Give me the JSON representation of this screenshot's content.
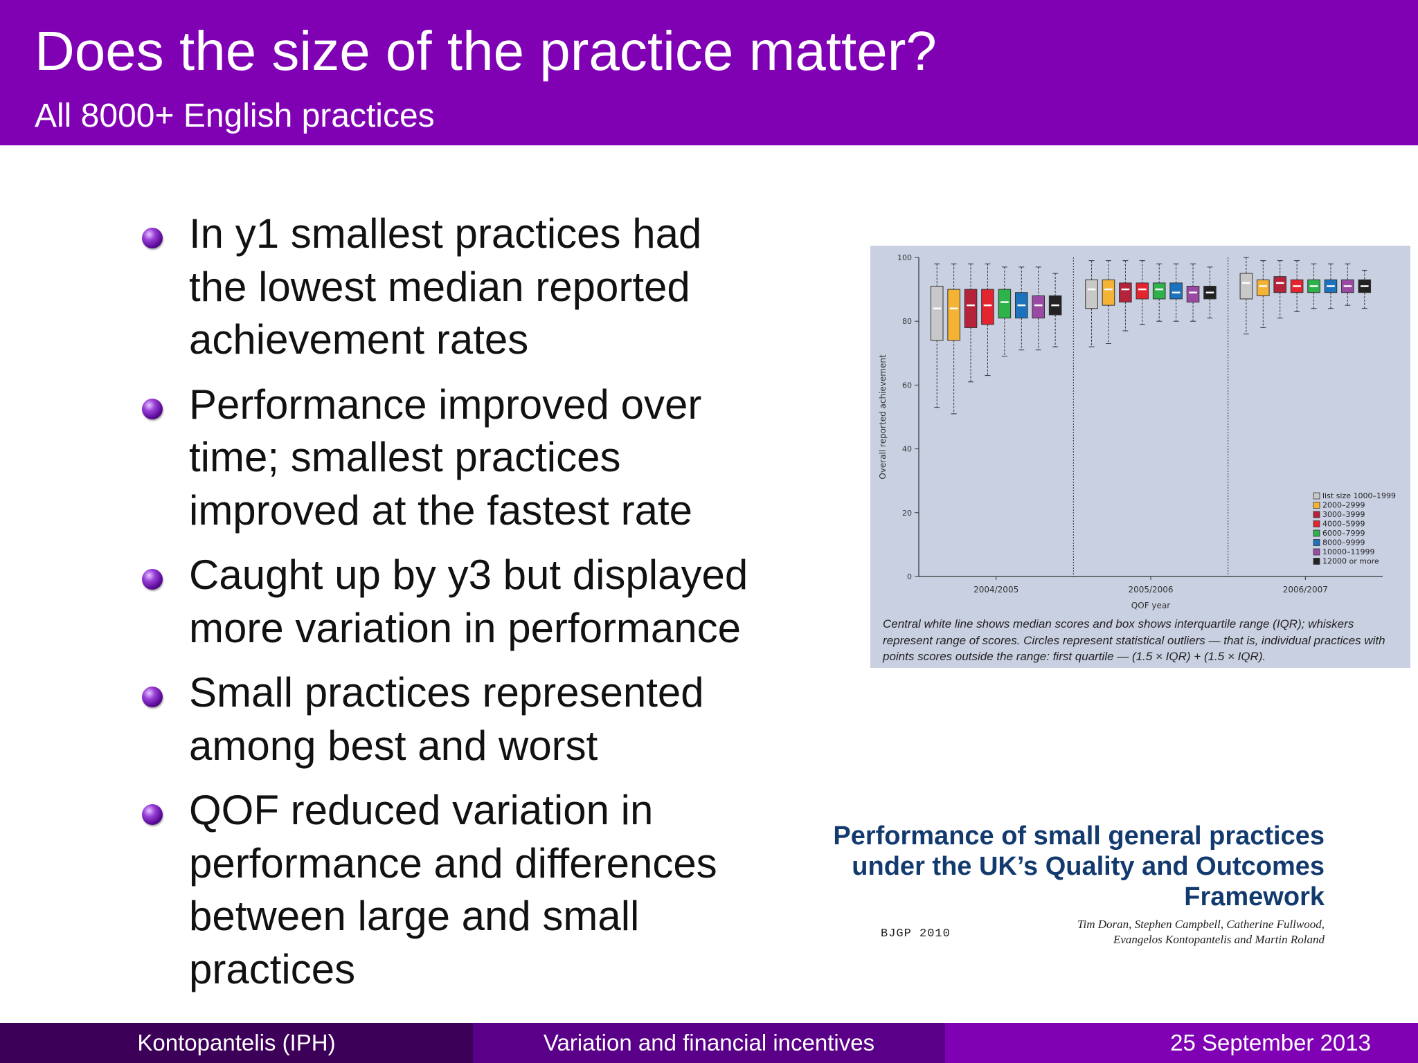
{
  "header": {
    "title": "Does the size of the practice matter?",
    "subtitle": "All 8000+ English practices"
  },
  "bullets": [
    "In y1 smallest practices had the lowest median reported achievement rates",
    "Performance improved over time; smallest practices improved at the fastest rate",
    "Caught up by y3 but displayed more variation in performance",
    "Small practices represented among best and worst",
    "QOF reduced variation in performance and differences between large and small practices"
  ],
  "chart_data": {
    "type": "box",
    "xlabel": "QOF year",
    "ylabel": "Overall reported achievement",
    "ylim": [
      0,
      100
    ],
    "yticks": [
      0,
      20,
      40,
      60,
      80,
      100
    ],
    "categories": [
      "2004/2005",
      "2005/2006",
      "2006/2007"
    ],
    "legend_position": "bottom-right",
    "series": [
      {
        "name": "list size 1000–1999",
        "color": "#c8c8c8",
        "values": [
          {
            "q1": 74,
            "median": 84,
            "q3": 91,
            "whisker_low": 53,
            "whisker_high": 98
          },
          {
            "q1": 84,
            "median": 90,
            "q3": 93,
            "whisker_low": 72,
            "whisker_high": 99
          },
          {
            "q1": 87,
            "median": 92,
            "q3": 95,
            "whisker_low": 76,
            "whisker_high": 100
          }
        ]
      },
      {
        "name": "2000–2999",
        "color": "#f5b335",
        "values": [
          {
            "q1": 74,
            "median": 84,
            "q3": 90,
            "whisker_low": 51,
            "whisker_high": 98
          },
          {
            "q1": 85,
            "median": 90,
            "q3": 93,
            "whisker_low": 73,
            "whisker_high": 99
          },
          {
            "q1": 88,
            "median": 91,
            "q3": 93,
            "whisker_low": 78,
            "whisker_high": 99
          }
        ]
      },
      {
        "name": "3000–3999",
        "color": "#b5233a",
        "values": [
          {
            "q1": 78,
            "median": 85,
            "q3": 90,
            "whisker_low": 61,
            "whisker_high": 98
          },
          {
            "q1": 86,
            "median": 90,
            "q3": 92,
            "whisker_low": 77,
            "whisker_high": 99
          },
          {
            "q1": 89,
            "median": 92,
            "q3": 94,
            "whisker_low": 81,
            "whisker_high": 99
          }
        ]
      },
      {
        "name": "4000–5999",
        "color": "#e4252f",
        "values": [
          {
            "q1": 79,
            "median": 85,
            "q3": 90,
            "whisker_low": 63,
            "whisker_high": 98
          },
          {
            "q1": 87,
            "median": 90,
            "q3": 92,
            "whisker_low": 79,
            "whisker_high": 99
          },
          {
            "q1": 89,
            "median": 91,
            "q3": 93,
            "whisker_low": 83,
            "whisker_high": 99
          }
        ]
      },
      {
        "name": "6000–7999",
        "color": "#2eb34a",
        "values": [
          {
            "q1": 81,
            "median": 86,
            "q3": 90,
            "whisker_low": 69,
            "whisker_high": 97
          },
          {
            "q1": 87,
            "median": 90,
            "q3": 92,
            "whisker_low": 80,
            "whisker_high": 98
          },
          {
            "q1": 89,
            "median": 91,
            "q3": 93,
            "whisker_low": 84,
            "whisker_high": 98
          }
        ]
      },
      {
        "name": "8000–9999",
        "color": "#1b73bd",
        "values": [
          {
            "q1": 81,
            "median": 85,
            "q3": 89,
            "whisker_low": 71,
            "whisker_high": 97
          },
          {
            "q1": 87,
            "median": 89,
            "q3": 92,
            "whisker_low": 80,
            "whisker_high": 98
          },
          {
            "q1": 89,
            "median": 91,
            "q3": 93,
            "whisker_low": 84,
            "whisker_high": 98
          }
        ]
      },
      {
        "name": "10000–11999",
        "color": "#9b4aa4",
        "values": [
          {
            "q1": 81,
            "median": 85,
            "q3": 88,
            "whisker_low": 71,
            "whisker_high": 97
          },
          {
            "q1": 86,
            "median": 89,
            "q3": 91,
            "whisker_low": 80,
            "whisker_high": 98
          },
          {
            "q1": 89,
            "median": 91,
            "q3": 93,
            "whisker_low": 85,
            "whisker_high": 98
          }
        ]
      },
      {
        "name": "12000 or more",
        "color": "#222222",
        "values": [
          {
            "q1": 82,
            "median": 85,
            "q3": 88,
            "whisker_low": 72,
            "whisker_high": 95
          },
          {
            "q1": 87,
            "median": 89,
            "q3": 91,
            "whisker_low": 81,
            "whisker_high": 97
          },
          {
            "q1": 89,
            "median": 91,
            "q3": 93,
            "whisker_low": 84,
            "whisker_high": 96
          }
        ]
      }
    ],
    "caption": "Central white line shows median scores and box shows interquartile range (IQR); whiskers represent range of scores. Circles represent statistical outliers — that is, individual practices with points scores outside the range: first quartile — (1.5 × IQR) + (1.5 × IQR)."
  },
  "paper": {
    "title": "Performance of small general practices under the UK’s Quality and Outcomes Framework",
    "journal": "BJGP 2010",
    "authors_line1": "Tim Doran, Stephen Campbell, Catherine Fullwood,",
    "authors_line2": "Evangelos Kontopantelis and Martin Roland"
  },
  "footer": {
    "author": "Kontopantelis  (IPH)",
    "talk_title": "Variation and financial incentives",
    "date": "25 September 2013"
  }
}
